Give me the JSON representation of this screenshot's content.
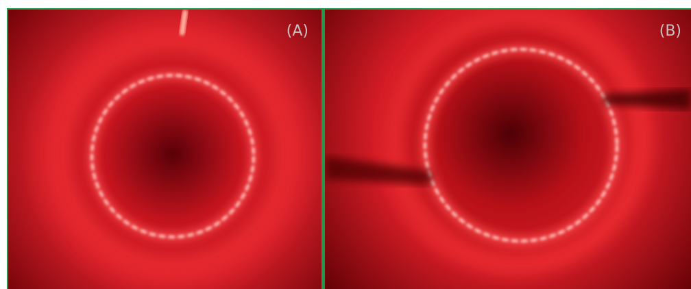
{
  "panels": [
    {
      "label": "(A)"
    },
    {
      "label": "(B)"
    }
  ]
}
